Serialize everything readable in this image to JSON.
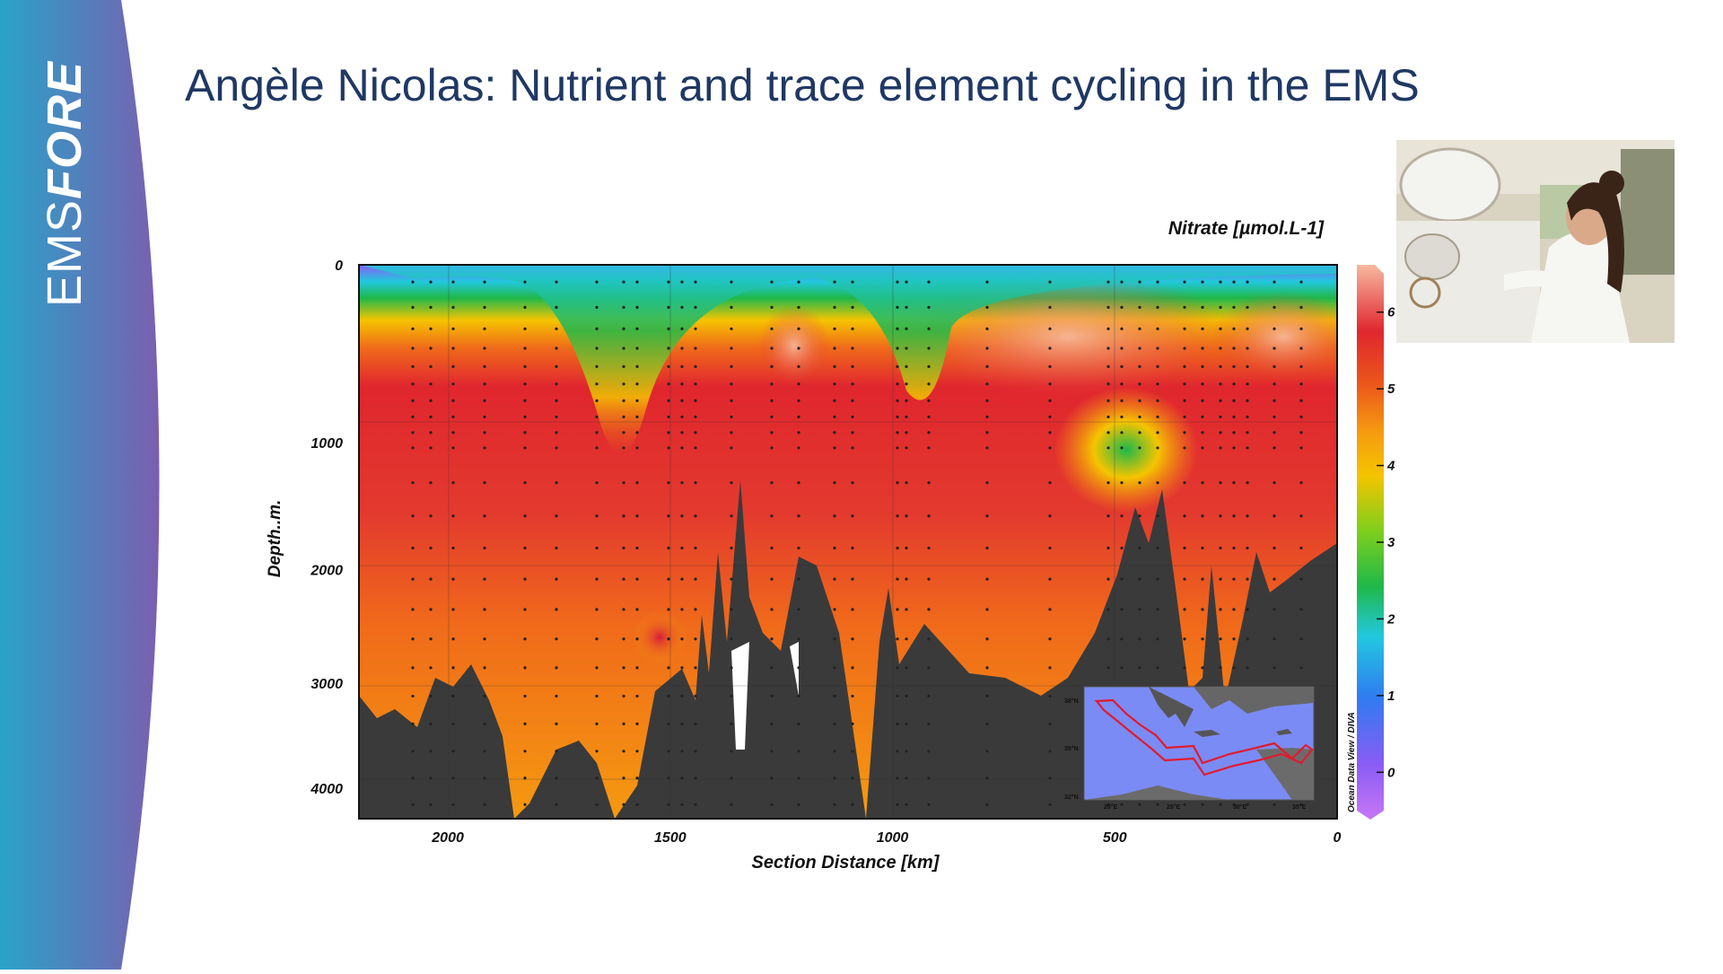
{
  "slide": {
    "title": "Angèle Nicolas: Nutrient and trace element cycling in the EMS",
    "brand_part1": "EMS",
    "brand_part2": "FORE",
    "brand_gradient": [
      "#29a3c8",
      "#7a5fb0"
    ],
    "title_color": "#1f3864"
  },
  "chart_data": {
    "type": "heatmap",
    "title": "Nitrate [µmol.L-1]",
    "xlabel": "Section Distance [km]",
    "ylabel": "Depth..m.",
    "x_ticks": [
      "2000",
      "1500",
      "1000",
      "500",
      "0"
    ],
    "y_ticks": [
      "0",
      "1000",
      "2000",
      "3000",
      "4000"
    ],
    "xlim": [
      2200,
      0
    ],
    "ylim": [
      0,
      4300
    ],
    "y_scale": "nonlinear (stretched near surface)",
    "colorbar": {
      "ticks": [
        "0",
        "1",
        "2",
        "3",
        "4",
        "5",
        "6"
      ],
      "range": [
        -0.5,
        6.5
      ]
    },
    "colormap": [
      "#b36ff0",
      "#6a5af5",
      "#2f8cf0",
      "#22c8e0",
      "#1fb84a",
      "#7ecf1c",
      "#f5c400",
      "#f59a10",
      "#f06a1a",
      "#e33a2e",
      "#e0262e",
      "#f2a488"
    ],
    "bathymetry_color": "#3a3a3a",
    "credit": "Ocean Data View / DIVA",
    "inset_map": {
      "lat_labels": [
        "38°N",
        "35°N",
        "32°N"
      ],
      "lon_labels": [
        "20°E",
        "25°E",
        "30°E",
        "35°E"
      ],
      "track_color": "#e01b2c"
    }
  },
  "photo": {
    "description_icon": "photo-icon"
  }
}
